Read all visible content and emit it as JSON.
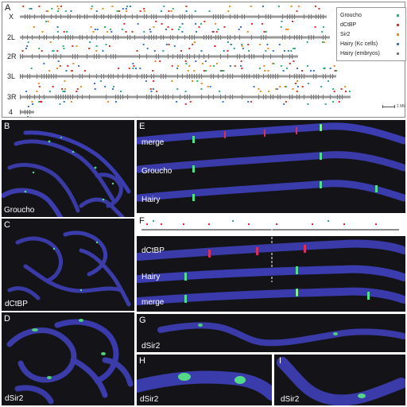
{
  "panelA": {
    "letter": "A",
    "chromosomes": [
      "X",
      "2L",
      "2R",
      "3L",
      "3R",
      "4"
    ],
    "legend": [
      {
        "name": "Groucho",
        "color": "#2eaf78"
      },
      {
        "name": "dCtBP",
        "color": "#d8322a"
      },
      {
        "name": "Sir2",
        "color": "#f08a1c"
      },
      {
        "name": "Hairy (Kc cells)",
        "color": "#3a73c8"
      },
      {
        "name": "Hairy (embryos)",
        "color": "#7a7a7a"
      }
    ],
    "scale": "1 Mb"
  },
  "panels": {
    "B": {
      "letter": "B",
      "label": "Groucho"
    },
    "C": {
      "letter": "C",
      "label": "dCtBP"
    },
    "D": {
      "letter": "D",
      "label": "dSir2"
    },
    "E": {
      "letter": "E",
      "labels": [
        "merge",
        "Groucho",
        "Hairy"
      ]
    },
    "F": {
      "letter": "F",
      "labels": [
        "dCtBP",
        "Hairy",
        "merge"
      ]
    },
    "G": {
      "letter": "G",
      "label": "dSir2"
    },
    "H": {
      "letter": "H",
      "label": "dSir2"
    },
    "I": {
      "letter": "I",
      "label": "dSir2"
    }
  },
  "colors": {
    "background": "#1a1a1a",
    "chromatin": "#3b3ca8",
    "groucho": "#3fd07a",
    "ctbp": "#d83060",
    "merge_yellow": "#f0f060"
  }
}
